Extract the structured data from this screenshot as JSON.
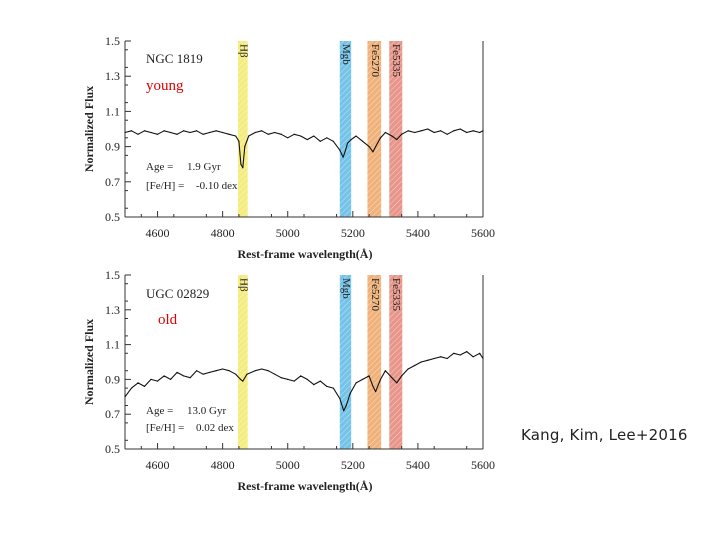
{
  "credit": "Kang, Kim, Lee+2016",
  "chart_data": [
    {
      "type": "line",
      "galaxy": "NGC 1819",
      "tag": "young",
      "age_label": "Age =",
      "age_value": "1.9 Gyr",
      "feh_label": "[Fe/H] =",
      "feh_value": "-0.10 dex",
      "xlabel": "Rest-frame wavelength(Å)",
      "ylabel": "Normalized Flux",
      "xlim": [
        4500,
        5600
      ],
      "ylim": [
        0.5,
        1.5
      ],
      "xticks": [
        4600,
        4800,
        5000,
        5200,
        5400,
        5600
      ],
      "yticks": [
        0.5,
        0.7,
        0.9,
        1.1,
        1.3,
        1.5
      ],
      "ytick_labels": [
        "0.5",
        "0.7",
        "0.9",
        "1.1",
        "1.3",
        "1.5"
      ],
      "bands": [
        {
          "name": "Hβ",
          "from": 4847,
          "to": 4877,
          "color": "#f5ec80"
        },
        {
          "name": "Mgb",
          "from": 5160,
          "to": 5195,
          "color": "#74c3e8"
        },
        {
          "name": "Fe5270",
          "from": 5245,
          "to": 5287,
          "color": "#f0b27a"
        },
        {
          "name": "Fe5335",
          "from": 5312,
          "to": 5352,
          "color": "#e8968a"
        }
      ],
      "series": [
        {
          "name": "NGC 1819 spectrum",
          "x": [
            4500,
            4520,
            4540,
            4560,
            4580,
            4600,
            4620,
            4640,
            4660,
            4680,
            4700,
            4720,
            4740,
            4760,
            4780,
            4800,
            4820,
            4840,
            4850,
            4856,
            4862,
            4868,
            4880,
            4900,
            4920,
            4940,
            4960,
            4980,
            5000,
            5020,
            5040,
            5060,
            5080,
            5100,
            5120,
            5140,
            5160,
            5170,
            5176,
            5184,
            5195,
            5210,
            5230,
            5250,
            5262,
            5270,
            5285,
            5300,
            5320,
            5335,
            5350,
            5370,
            5390,
            5410,
            5430,
            5450,
            5470,
            5490,
            5510,
            5530,
            5550,
            5570,
            5590,
            5600
          ],
          "y": [
            0.98,
            0.99,
            0.97,
            0.99,
            0.98,
            0.97,
            0.99,
            0.98,
            0.97,
            0.99,
            0.98,
            0.99,
            0.97,
            0.98,
            0.99,
            0.98,
            0.97,
            0.96,
            0.93,
            0.8,
            0.78,
            0.9,
            0.96,
            0.98,
            0.99,
            0.97,
            0.98,
            0.97,
            0.95,
            0.97,
            0.96,
            0.94,
            0.96,
            0.93,
            0.95,
            0.93,
            0.88,
            0.84,
            0.87,
            0.92,
            0.94,
            0.96,
            0.93,
            0.9,
            0.87,
            0.9,
            0.95,
            0.98,
            0.96,
            0.94,
            0.97,
            0.99,
            0.98,
            0.99,
            1.0,
            0.98,
            0.99,
            0.97,
            0.99,
            1.0,
            0.98,
            0.99,
            0.98,
            0.99
          ]
        }
      ]
    },
    {
      "type": "line",
      "galaxy": "UGC 02829",
      "tag": "old",
      "age_label": "Age =",
      "age_value": "13.0 Gyr",
      "feh_label": "[Fe/H] =",
      "feh_value": "0.02 dex",
      "xlabel": "Rest-frame wavelength(Å)",
      "ylabel": "Normalized Flux",
      "xlim": [
        4500,
        5600
      ],
      "ylim": [
        0.5,
        1.5
      ],
      "xticks": [
        4600,
        4800,
        5000,
        5200,
        5400,
        5600
      ],
      "yticks": [
        0.5,
        0.7,
        0.9,
        1.1,
        1.3,
        1.5
      ],
      "ytick_labels": [
        "0.5",
        "0.7",
        "0.9",
        "1.1",
        "1.3",
        "1.5"
      ],
      "bands": [
        {
          "name": "Hβ",
          "from": 4847,
          "to": 4877,
          "color": "#f5ec80"
        },
        {
          "name": "Mgb",
          "from": 5160,
          "to": 5195,
          "color": "#74c3e8"
        },
        {
          "name": "Fe5270",
          "from": 5245,
          "to": 5287,
          "color": "#f0b27a"
        },
        {
          "name": "Fe5335",
          "from": 5312,
          "to": 5352,
          "color": "#e8968a"
        }
      ],
      "series": [
        {
          "name": "UGC 02829 spectrum",
          "x": [
            4500,
            4520,
            4540,
            4560,
            4580,
            4600,
            4620,
            4640,
            4660,
            4680,
            4700,
            4720,
            4740,
            4760,
            4780,
            4800,
            4820,
            4840,
            4855,
            4862,
            4875,
            4900,
            4920,
            4940,
            4960,
            4980,
            5000,
            5020,
            5040,
            5060,
            5080,
            5100,
            5120,
            5140,
            5160,
            5172,
            5180,
            5192,
            5210,
            5230,
            5250,
            5262,
            5270,
            5285,
            5300,
            5320,
            5335,
            5350,
            5370,
            5390,
            5410,
            5430,
            5450,
            5470,
            5490,
            5510,
            5530,
            5550,
            5570,
            5590,
            5600
          ],
          "y": [
            0.8,
            0.85,
            0.88,
            0.86,
            0.9,
            0.89,
            0.92,
            0.9,
            0.94,
            0.92,
            0.91,
            0.95,
            0.93,
            0.94,
            0.95,
            0.96,
            0.95,
            0.93,
            0.9,
            0.89,
            0.93,
            0.95,
            0.96,
            0.95,
            0.93,
            0.91,
            0.9,
            0.89,
            0.92,
            0.9,
            0.87,
            0.89,
            0.86,
            0.85,
            0.79,
            0.72,
            0.75,
            0.82,
            0.88,
            0.9,
            0.92,
            0.86,
            0.83,
            0.9,
            0.95,
            0.91,
            0.88,
            0.92,
            0.96,
            0.98,
            1.0,
            1.01,
            1.02,
            1.03,
            1.02,
            1.05,
            1.04,
            1.06,
            1.03,
            1.05,
            1.02
          ]
        }
      ]
    }
  ]
}
